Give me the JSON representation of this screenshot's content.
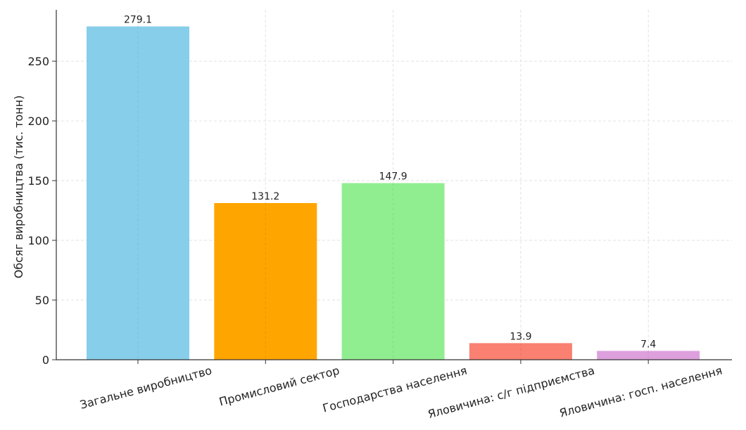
{
  "chart_data": {
    "type": "bar",
    "title": "",
    "xlabel": "",
    "ylabel": "Обсяг виробництва (тис. тонн)",
    "categories": [
      "Загальне виробництво",
      "Промисловий сектор",
      "Господарства населення",
      "Яловичина: с/г підприємства",
      "Яловичина: госп. населення"
    ],
    "values": [
      279.1,
      131.2,
      147.9,
      13.9,
      7.4
    ],
    "data_labels": [
      "279.1",
      "131.2",
      "147.9",
      "13.9",
      "7.4"
    ],
    "colors": [
      "#87ceeb",
      "#ffa500",
      "#90ee90",
      "#fa8072",
      "#dda0dd"
    ],
    "ylim": [
      0,
      293
    ],
    "yticks": [
      0,
      50,
      100,
      150,
      200,
      250
    ],
    "ytick_labels": [
      "0",
      "50",
      "100",
      "150",
      "200",
      "250"
    ],
    "grid": true,
    "grid_style": "dashed",
    "x_tick_rotation_deg": -15
  }
}
